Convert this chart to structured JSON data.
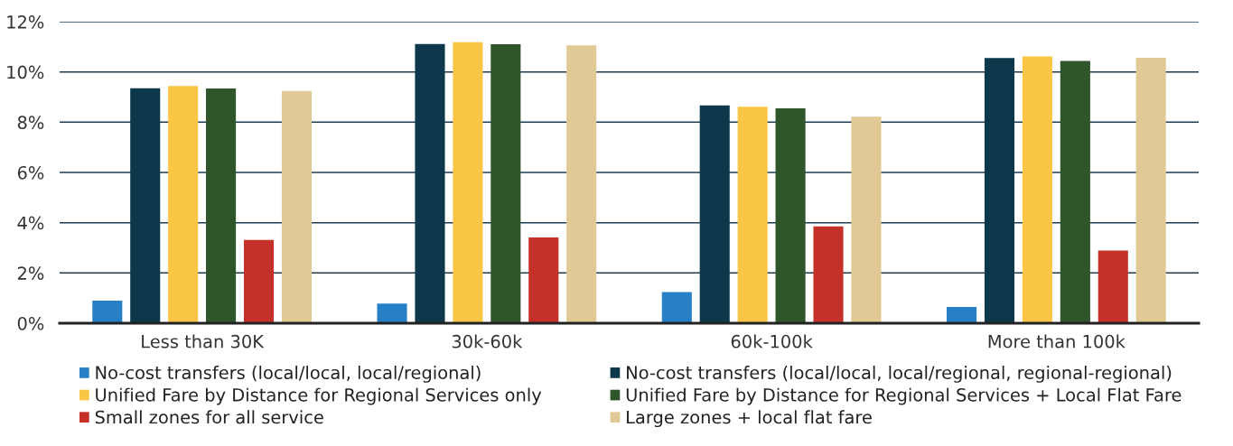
{
  "chart_data": {
    "type": "bar",
    "categories": [
      "Less than 30K",
      "30k-60k",
      "60k-100k",
      "More than 100k"
    ],
    "series": [
      {
        "name": "No-cost transfers (local/local, local/regional)",
        "color": "#2780c6",
        "values": [
          0.9,
          0.78,
          1.24,
          0.65
        ]
      },
      {
        "name": "No-cost transfers (local/local, local/regional, regional-regional)",
        "color": "#0d374b",
        "values": [
          9.35,
          11.11,
          8.67,
          10.55
        ]
      },
      {
        "name": "Unified Fare by Distance for Regional Services only",
        "color": "#fbc646",
        "values": [
          9.44,
          11.18,
          8.61,
          10.62
        ]
      },
      {
        "name": "Unified Fare by Distance for Regional Services + Local Flat Fare",
        "color": "#2f562b",
        "values": [
          9.34,
          11.1,
          8.55,
          10.44
        ]
      },
      {
        "name": "Small zones for all service",
        "color": "#c43128",
        "values": [
          3.31,
          3.41,
          3.85,
          2.89
        ]
      },
      {
        "name": "Large zones + local flat fare",
        "color": "#e0c994",
        "values": [
          9.24,
          11.06,
          8.22,
          10.56
        ]
      }
    ],
    "ylim": [
      0,
      12
    ],
    "yticks": [
      {
        "value": 0,
        "label": "0%"
      },
      {
        "value": 2,
        "label": "2%"
      },
      {
        "value": 4,
        "label": "4%"
      },
      {
        "value": 6,
        "label": "6%"
      },
      {
        "value": 8,
        "label": "8%"
      },
      {
        "value": 10,
        "label": "10%"
      },
      {
        "value": 12,
        "label": "12%"
      }
    ],
    "grid": "y",
    "legend": "bottom"
  }
}
